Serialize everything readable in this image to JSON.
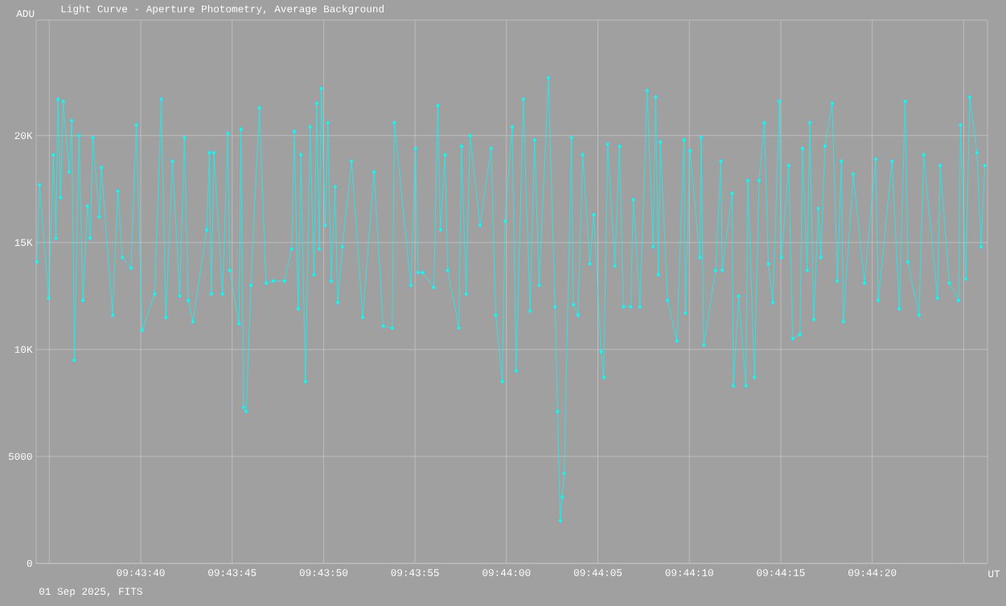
{
  "chart_data": {
    "type": "line",
    "title": "Light Curve - Aperture Photometry, Average Background",
    "xlabel": "UT",
    "ylabel": "ADU",
    "annotations": [
      "01 Sep 2025, FITS"
    ],
    "color": "#00ffff",
    "marker": "circle",
    "line_style": "solid",
    "grid": true,
    "xlim": [
      9.72619,
      9.74064
    ],
    "ylim": [
      0,
      25400
    ],
    "xticks": [
      {
        "value": 9.726389,
        "label": null
      },
      {
        "value": 9.727778,
        "label": "09:43:40"
      },
      {
        "value": 9.729167,
        "label": "09:43:45"
      },
      {
        "value": 9.730556,
        "label": "09:43:50"
      },
      {
        "value": 9.731944,
        "label": "09:43:55"
      },
      {
        "value": 9.733333,
        "label": "09:44:00"
      },
      {
        "value": 9.734722,
        "label": "09:44:05"
      },
      {
        "value": 9.736111,
        "label": "09:44:10"
      },
      {
        "value": 9.7375,
        "label": "09:44:15"
      },
      {
        "value": 9.738889,
        "label": "09:44:20"
      },
      {
        "value": 9.740278,
        "label": null
      }
    ],
    "yticks": [
      0,
      5000,
      {
        "value": 10000,
        "label": "10K"
      },
      {
        "value": 15000,
        "label": "15K"
      },
      {
        "value": 20000,
        "label": "20K"
      }
    ],
    "x": [
      9.7262,
      9.72624,
      9.72638,
      9.72645,
      9.72649,
      9.72652,
      9.72656,
      9.7266,
      9.72669,
      9.72673,
      9.72677,
      9.72684,
      9.7269,
      9.72697,
      9.72701,
      9.72705,
      9.72715,
      9.72718,
      9.72735,
      9.72743,
      9.7275,
      9.72763,
      9.72771,
      9.7278,
      9.72799,
      9.72809,
      9.72816,
      9.72826,
      9.72837,
      9.72844,
      9.7285,
      9.72857,
      9.72878,
      9.72882,
      9.72885,
      9.72889,
      9.72902,
      9.7291,
      9.72913,
      9.72927,
      9.7293,
      9.72934,
      9.72938,
      9.72945,
      9.72958,
      9.72968,
      9.72979,
      9.72996,
      9.73007,
      9.73011,
      9.73017,
      9.73021,
      9.73028,
      9.73035,
      9.73041,
      9.73045,
      9.73049,
      9.73052,
      9.73058,
      9.73062,
      9.73067,
      9.73073,
      9.73077,
      9.73084,
      9.73098,
      9.73115,
      9.73132,
      9.73146,
      9.7316,
      9.73163,
      9.73188,
      9.73195,
      9.73199,
      9.73206,
      9.73223,
      9.73229,
      9.73233,
      9.7324,
      9.73244,
      9.73261,
      9.73265,
      9.73272,
      9.73278,
      9.73293,
      9.7331,
      9.73317,
      9.73327,
      9.73331,
      9.73342,
      9.73348,
      9.73359,
      9.73369,
      9.73376,
      9.73383,
      9.73397,
      9.73407,
      9.73411,
      9.73415,
      9.73418,
      9.73421,
      9.73432,
      9.73435,
      9.73442,
      9.73449,
      9.7346,
      9.73466,
      9.73477,
      9.73481,
      9.73487,
      9.73498,
      9.73505,
      9.73511,
      9.73522,
      9.73526,
      9.73536,
      9.73547,
      9.73556,
      9.7356,
      9.73564,
      9.73567,
      9.73578,
      9.73592,
      9.73603,
      9.73605,
      9.73612,
      9.73627,
      9.73629,
      9.73633,
      9.73651,
      9.73659,
      9.73661,
      9.73676,
      9.73678,
      9.73686,
      9.73697,
      9.737,
      9.7371,
      9.73717,
      9.73725,
      9.73731,
      9.73738,
      9.73748,
      9.73751,
      9.73762,
      9.73768,
      9.73779,
      9.73783,
      9.7379,
      9.73794,
      9.738,
      9.73807,
      9.73811,
      9.73817,
      9.73828,
      9.73836,
      9.73842,
      9.73845,
      9.7386,
      9.73877,
      9.73894,
      9.73898,
      9.73919,
      9.7393,
      9.73939,
      9.73943,
      9.7396,
      9.73967,
      9.73988,
      9.73992,
      9.74006,
      9.7402,
      9.74023,
      9.74031,
      9.74037,
      9.74048,
      9.74054,
      9.7406
    ],
    "values": [
      14100,
      17700,
      12400,
      19100,
      15200,
      21700,
      17100,
      21600,
      18300,
      20700,
      9500,
      20000,
      12300,
      16700,
      15200,
      19900,
      16200,
      18500,
      11600,
      17400,
      14300,
      13800,
      20500,
      10900,
      12600,
      21700,
      11500,
      18800,
      12500,
      19900,
      12300,
      11300,
      15600,
      19200,
      12600,
      19200,
      12600,
      20100,
      13700,
      11200,
      20300,
      7300,
      7100,
      13000,
      21300,
      13100,
      13200,
      13200,
      14700,
      20200,
      11900,
      19100,
      8500,
      20400,
      13500,
      21500,
      14700,
      22200,
      15800,
      20600,
      13200,
      17600,
      12200,
      14800,
      18800,
      11500,
      18300,
      11100,
      11000,
      20600,
      13000,
      19400,
      13600,
      13600,
      12900,
      21400,
      15600,
      19100,
      13700,
      11000,
      19500,
      12600,
      20000,
      15800,
      19400,
      11600,
      8500,
      16000,
      20400,
      9000,
      21700,
      11800,
      19800,
      13000,
      22700,
      12000,
      7100,
      2000,
      3100,
      4200,
      19900,
      12100,
      11600,
      19100,
      14000,
      16300,
      9900,
      8700,
      19600,
      13900,
      19500,
      12000,
      12000,
      17000,
      12000,
      22100,
      14800,
      21800,
      13500,
      19700,
      12300,
      10400,
      19800,
      11700,
      19300,
      14300,
      19900,
      10200,
      13700,
      18800,
      13700,
      17300,
      8300,
      12500,
      8300,
      17900,
      8700,
      17900,
      20600,
      14000,
      12200,
      21600,
      14300,
      18600,
      10500,
      10700,
      19400,
      13700,
      20600,
      11400,
      16600,
      14300,
      19500,
      21500,
      13200,
      18800,
      11300,
      18200,
      13100,
      18900,
      12300,
      18800,
      11900,
      21600,
      14100,
      11600,
      19100,
      12400,
      18600,
      13100,
      12300,
      20500,
      13300,
      21800,
      19200,
      14800,
      18600
    ]
  }
}
